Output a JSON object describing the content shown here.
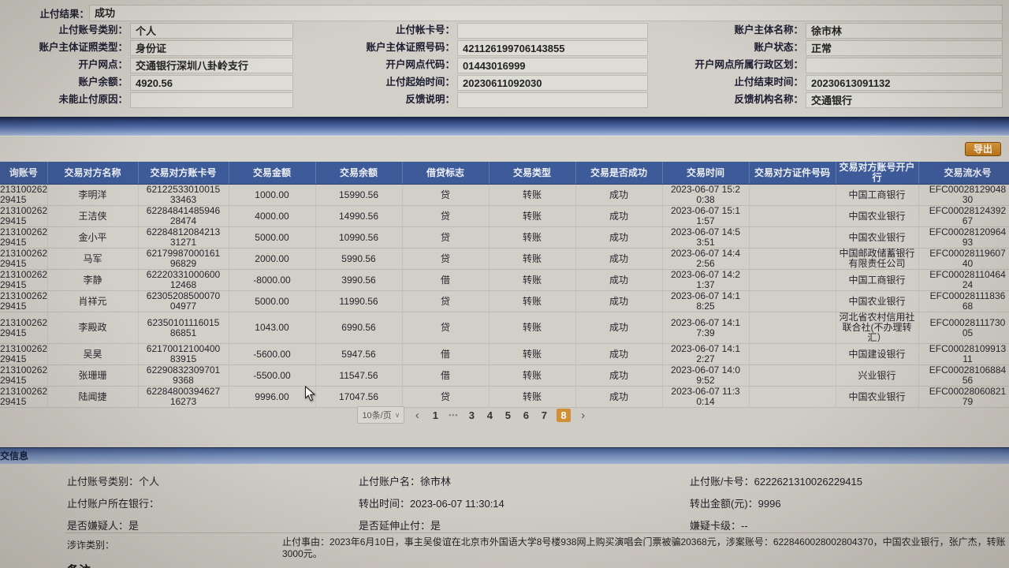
{
  "top_form": {
    "result": {
      "label": "止付结果",
      "value": "成功"
    },
    "fields": [
      {
        "label": "止付账号类别",
        "value": "个人"
      },
      {
        "label": "止付帐卡号",
        "value": ""
      },
      {
        "label": "账户主体名称",
        "value": "徐市林"
      },
      {
        "label": "账户主体证照类型",
        "value": "身份证"
      },
      {
        "label": "账户主体证照号码",
        "value": "421126199706143855"
      },
      {
        "label": "账户状态",
        "value": "正常"
      },
      {
        "label": "开户网点",
        "value": "交通银行深圳八卦岭支行"
      },
      {
        "label": "开户网点代码",
        "value": "01443016999"
      },
      {
        "label": "开户网点所属行政区划",
        "value": ""
      },
      {
        "label": "账户余额",
        "value": "4920.56"
      },
      {
        "label": "止付起始时间",
        "value": "20230611092030"
      },
      {
        "label": "止付结束时间",
        "value": "20230613091132"
      },
      {
        "label": "未能止付原因",
        "value": ""
      },
      {
        "label": "反馈说明",
        "value": ""
      },
      {
        "label": "反馈机构名称",
        "value": "交通银行"
      }
    ]
  },
  "toolbar": {
    "export_label": "导出"
  },
  "table": {
    "columns": [
      "询账号",
      "交易对方名称",
      "交易对方账卡号",
      "交易金额",
      "交易余额",
      "借贷标志",
      "交易类型",
      "交易是否成功",
      "交易时间",
      "交易对方证件号码",
      "交易对方账号开户行",
      "交易流水号"
    ],
    "rows": [
      [
        "213100262\n29415",
        "李明洋",
        "62122533010015\n33463",
        "1000.00",
        "15990.56",
        "贷",
        "转账",
        "成功",
        "2023-06-07 15:2\n0:38",
        "",
        "中国工商银行",
        "EFC00028129048\n30"
      ],
      [
        "213100262\n29415",
        "王洁侠",
        "62284841485946\n28474",
        "4000.00",
        "14990.56",
        "贷",
        "转账",
        "成功",
        "2023-06-07 15:1\n1:57",
        "",
        "中国农业银行",
        "EFC00028124392\n67"
      ],
      [
        "213100262\n29415",
        "金小平",
        "62284812084213\n31271",
        "5000.00",
        "10990.56",
        "贷",
        "转账",
        "成功",
        "2023-06-07 14:5\n3:51",
        "",
        "中国农业银行",
        "EFC00028120964\n93"
      ],
      [
        "213100262\n29415",
        "马军",
        "62179987000161\n96829",
        "2000.00",
        "5990.56",
        "贷",
        "转账",
        "成功",
        "2023-06-07 14:4\n2:56",
        "",
        "中国邮政储蓄银行\n有限责任公司",
        "EFC00028119607\n40"
      ],
      [
        "213100262\n29415",
        "李静",
        "62220331000600\n12468",
        "-8000.00",
        "3990.56",
        "借",
        "转账",
        "成功",
        "2023-06-07 14:2\n1:37",
        "",
        "中国工商银行",
        "EFC00028110464\n24"
      ],
      [
        "213100262\n29415",
        "肖祥元",
        "62305208500070\n04977",
        "5000.00",
        "11990.56",
        "贷",
        "转账",
        "成功",
        "2023-06-07 14:1\n8:25",
        "",
        "中国农业银行",
        "EFC00028111836\n68"
      ],
      [
        "213100262\n29415",
        "李殿政",
        "62350101116015\n86851",
        "1043.00",
        "6990.56",
        "贷",
        "转账",
        "成功",
        "2023-06-07 14:1\n7:39",
        "",
        "河北省农村信用社\n联合社(不办理转\n汇）",
        "EFC00028111730\n05"
      ],
      [
        "213100262\n29415",
        "吴昊",
        "62170012100400\n83915",
        "-5600.00",
        "5947.56",
        "借",
        "转账",
        "成功",
        "2023-06-07 14:1\n2:27",
        "",
        "中国建设银行",
        "EFC00028109913\n11"
      ],
      [
        "213100262\n29415",
        "张珊珊",
        "62290832309701\n9368",
        "-5500.00",
        "11547.56",
        "借",
        "转账",
        "成功",
        "2023-06-07 14:0\n9:52",
        "",
        "兴业银行",
        "EFC00028106884\n56"
      ],
      [
        "213100262\n29415",
        "陆闻捷",
        "62284800394627\n16273",
        "9996.00",
        "17047.56",
        "贷",
        "转账",
        "成功",
        "2023-06-07 11:3\n0:14",
        "",
        "中国农业银行",
        "EFC00028060821\n79"
      ]
    ]
  },
  "pager": {
    "page_size_label": "10条/页",
    "prev": "‹",
    "next": "›",
    "pages": [
      "1",
      "•••",
      "3",
      "4",
      "5",
      "6",
      "7",
      "8"
    ],
    "active": "8",
    "active_color": "#d29035"
  },
  "bottom": {
    "header": "交信息",
    "rows": [
      [
        {
          "label": "止付账号类别",
          "value": "个人"
        },
        {
          "label": "止付账户名",
          "value": "徐市林"
        },
        {
          "label": "止付账/卡号",
          "value": "6222621310026229415"
        }
      ],
      [
        {
          "label": "止付账户所在银行",
          "value": ""
        },
        {
          "label": "转出时间",
          "value": "2023-06-07 11:30:14"
        },
        {
          "label": "转出金额(元)",
          "value": "9996"
        }
      ],
      [
        {
          "label": "是否嫌疑人",
          "value": "是"
        },
        {
          "label": "是否延伸止付",
          "value": "是"
        },
        {
          "label": "嫌疑卡级",
          "value": "--"
        }
      ]
    ],
    "fraud": {
      "label": "涉诈类别",
      "value": ""
    },
    "reason": {
      "label": "止付事由",
      "value": "2023年6月10日，事主吴俊谊在北京市外国语大学8号楼938网上购买演唱会门票被骗20368元，涉案账号：6228460028002804370，中国农业银行，张广杰，转账3000元。"
    },
    "cut_text": "备注"
  }
}
